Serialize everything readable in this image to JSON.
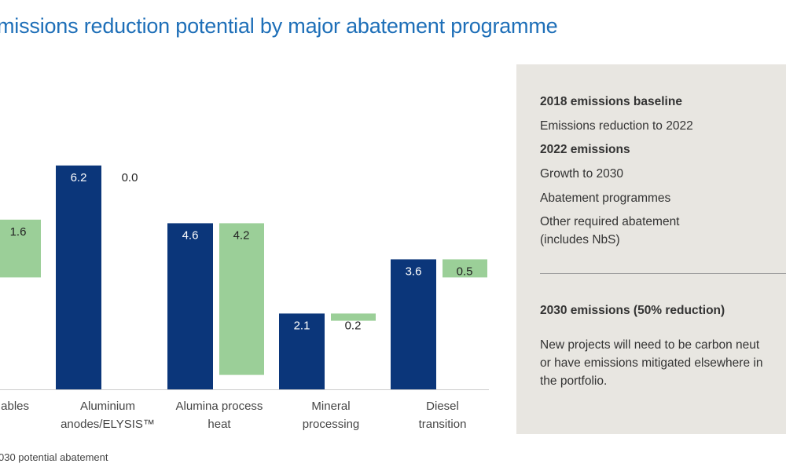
{
  "title": "missions reduction potential by major abatement programme",
  "legend_text": "030 potential abatement",
  "colors": {
    "title": "#1e6fb8",
    "blue_bar": "#0b367a",
    "green_bar": "#9bcf98",
    "panel": "#e8e6e1"
  },
  "panel": {
    "items": [
      {
        "text": "2018 emissions baseline",
        "bold": true
      },
      {
        "text": "Emissions reduction to 2022",
        "bold": false
      },
      {
        "text": "2022 emissions",
        "bold": true
      },
      {
        "text": "Growth to 2030",
        "bold": false
      },
      {
        "text": "Abatement programmes",
        "bold": false
      },
      {
        "text": "Other required abatement",
        "bold": false
      },
      {
        "text": "(includes NbS)",
        "bold": false
      }
    ],
    "result": "2030 emissions (50% reduction)",
    "note": [
      "New projects will need to be carbon neut",
      "or have emissions mitigated elsewhere in",
      "the portfolio."
    ]
  },
  "chart_data": {
    "type": "bar",
    "categories": [
      [
        "ables"
      ],
      [
        "Aluminium",
        "anodes/ELYSIS™"
      ],
      [
        "Alumina process",
        "heat"
      ],
      [
        "Mineral",
        "processing"
      ],
      [
        "Diesel",
        "transition"
      ]
    ],
    "series": [
      {
        "values": [
          null,
          6.2,
          4.6,
          2.1,
          3.6
        ],
        "labels": [
          "",
          "6.2",
          "4.6",
          "2.1",
          "3.6"
        ],
        "color": "#0b367a"
      },
      {
        "name": "2030 potential abatement",
        "values": [
          1.6,
          0.0,
          4.2,
          0.2,
          0.5
        ],
        "labels": [
          "1.6",
          "0.0",
          "4.2",
          "0.2",
          "0.5"
        ],
        "color": "#9bcf98",
        "note": "floating bars hanging down from the top of the blue bar"
      }
    ],
    "first_blue_top_estimate": 4.7,
    "grid": false
  }
}
